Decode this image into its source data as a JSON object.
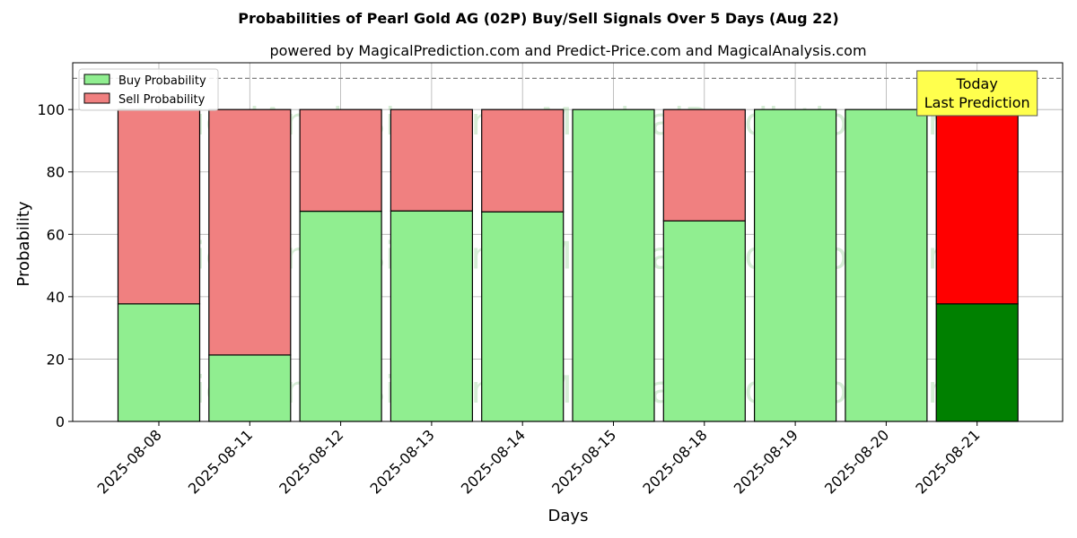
{
  "chart_data": {
    "type": "bar",
    "stacked": true,
    "title": "Probabilities of Pearl Gold AG (02P) Buy/Sell Signals Over 5 Days (Aug 22)",
    "subtitle": "powered by MagicalPrediction.com and Predict-Price.com and MagicalAnalysis.com",
    "xlabel": "Days",
    "ylabel": "Probability",
    "ylim": [
      0,
      115
    ],
    "yticks": [
      0,
      20,
      40,
      60,
      80,
      100
    ],
    "reference_line": 110,
    "grid": true,
    "legend_position": "top-left",
    "categories": [
      "2025-08-08",
      "2025-08-11",
      "2025-08-12",
      "2025-08-13",
      "2025-08-14",
      "2025-08-15",
      "2025-08-18",
      "2025-08-19",
      "2025-08-20",
      "2025-08-21"
    ],
    "series": [
      {
        "name": "Buy Probability",
        "color": "#90ee90",
        "values": [
          37.7,
          21.3,
          67.4,
          67.5,
          67.2,
          100,
          64.3,
          100,
          100,
          37.7
        ]
      },
      {
        "name": "Sell Probability",
        "color": "#f08080",
        "values": [
          62.3,
          78.7,
          32.6,
          32.5,
          32.8,
          0,
          35.7,
          0,
          0,
          62.3
        ]
      }
    ],
    "highlight": {
      "index": 9,
      "buy_color": "#008000",
      "sell_color": "#ff0000",
      "annotation_lines": [
        "Today",
        "Last Prediction"
      ],
      "annotation_bg": "#ffff4d"
    },
    "watermarks": [
      "MagicalAnalysis.com",
      "MagicalPrediction.com"
    ]
  }
}
